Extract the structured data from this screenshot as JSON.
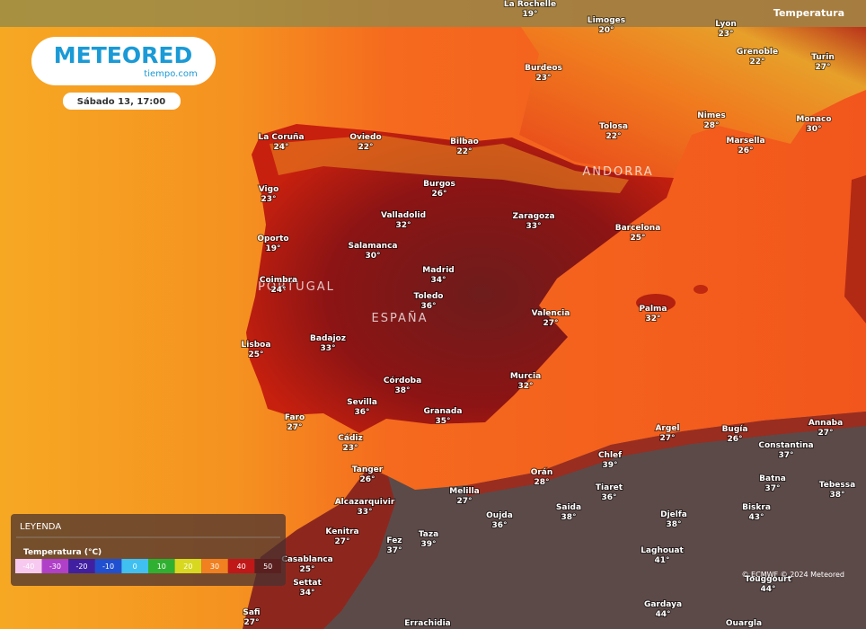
{
  "header": {
    "logo": "METEORED",
    "logo_sub": "tiempo.com",
    "date": "Sábado 13, 17:00",
    "layer": "Temperatura"
  },
  "regions": [
    "PORTUGAL",
    "ESPAÑA",
    "ANDORRA"
  ],
  "cities": [
    {
      "name": "La Rochelle",
      "temp": "19°"
    },
    {
      "name": "Limoges",
      "temp": "20°"
    },
    {
      "name": "Lyon",
      "temp": "23°"
    },
    {
      "name": "Grenoble",
      "temp": "22°"
    },
    {
      "name": "Turin",
      "temp": "27°"
    },
    {
      "name": "Burdeos",
      "temp": "23°"
    },
    {
      "name": "Tolosa",
      "temp": "22°"
    },
    {
      "name": "Nimes",
      "temp": "28°"
    },
    {
      "name": "Monaco",
      "temp": "30°"
    },
    {
      "name": "Marsella",
      "temp": "26°"
    },
    {
      "name": "La Coruña",
      "temp": "24°"
    },
    {
      "name": "Oviedo",
      "temp": "22°"
    },
    {
      "name": "Bilbao",
      "temp": "22°"
    },
    {
      "name": "Vigo",
      "temp": "23°"
    },
    {
      "name": "Burgos",
      "temp": "26°"
    },
    {
      "name": "Valladolid",
      "temp": "32°"
    },
    {
      "name": "Zaragoza",
      "temp": "33°"
    },
    {
      "name": "Barcelona",
      "temp": "25°"
    },
    {
      "name": "Oporto",
      "temp": "19°"
    },
    {
      "name": "Salamanca",
      "temp": "30°"
    },
    {
      "name": "Madrid",
      "temp": "34°"
    },
    {
      "name": "Coimbra",
      "temp": "24°"
    },
    {
      "name": "Toledo",
      "temp": "36°"
    },
    {
      "name": "Valencia",
      "temp": "27°"
    },
    {
      "name": "Palma",
      "temp": "32°"
    },
    {
      "name": "Badajoz",
      "temp": "33°"
    },
    {
      "name": "Lisboa",
      "temp": "25°"
    },
    {
      "name": "Córdoba",
      "temp": "38°"
    },
    {
      "name": "Murcia",
      "temp": "32°"
    },
    {
      "name": "Sevilla",
      "temp": "36°"
    },
    {
      "name": "Granada",
      "temp": "35°"
    },
    {
      "name": "Faro",
      "temp": "27°"
    },
    {
      "name": "Cádiz",
      "temp": "23°"
    },
    {
      "name": "Tanger",
      "temp": "26°"
    },
    {
      "name": "Alcazarquivir",
      "temp": "33°"
    },
    {
      "name": "Melilla",
      "temp": "27°"
    },
    {
      "name": "Orán",
      "temp": "28°"
    },
    {
      "name": "Chlef",
      "temp": "39°"
    },
    {
      "name": "Argel",
      "temp": "27°"
    },
    {
      "name": "Bugía",
      "temp": "26°"
    },
    {
      "name": "Constantina",
      "temp": "37°"
    },
    {
      "name": "Annaba",
      "temp": "27°"
    },
    {
      "name": "Tiaret",
      "temp": "36°"
    },
    {
      "name": "Batna",
      "temp": "37°"
    },
    {
      "name": "Tebessa",
      "temp": "38°"
    },
    {
      "name": "Saida",
      "temp": "38°"
    },
    {
      "name": "Djelfa",
      "temp": "38°"
    },
    {
      "name": "Biskra",
      "temp": "43°"
    },
    {
      "name": "Oujda",
      "temp": "36°"
    },
    {
      "name": "Kenitra",
      "temp": "27°"
    },
    {
      "name": "Fez",
      "temp": "37°"
    },
    {
      "name": "Taza",
      "temp": "39°"
    },
    {
      "name": "Laghouat",
      "temp": "41°"
    },
    {
      "name": "Casablanca",
      "temp": "25°"
    },
    {
      "name": "Settat",
      "temp": "34°"
    },
    {
      "name": "Touggourt",
      "temp": "44°"
    },
    {
      "name": "Gardaya",
      "temp": "44°"
    },
    {
      "name": "Safi",
      "temp": "27°"
    }
  ],
  "bottom_names": [
    "Errachidia",
    "Ouargla"
  ],
  "legend": {
    "title": "LEYENDA",
    "subtitle": "Temperatura (°C)",
    "ticks": [
      -40,
      -30,
      -20,
      -10,
      0,
      10,
      20,
      30,
      40,
      50
    ]
  },
  "copyright": "© ECMWF © 2024 Meteored"
}
